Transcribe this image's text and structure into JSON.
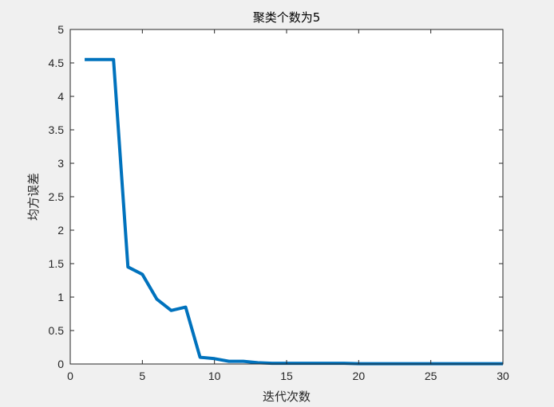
{
  "chart_data": {
    "type": "line",
    "title": "聚类个数为5",
    "xlabel": "迭代次数",
    "ylabel": "均方误差",
    "xlim": [
      0,
      30
    ],
    "ylim": [
      0,
      5
    ],
    "xticks": [
      0,
      5,
      10,
      15,
      20,
      25,
      30
    ],
    "yticks": [
      0,
      0.5,
      1,
      1.5,
      2,
      2.5,
      3,
      3.5,
      4,
      4.5,
      5
    ],
    "grid": false,
    "series": [
      {
        "color": "#0072BD",
        "x": [
          1,
          2,
          3,
          4,
          5,
          6,
          7,
          8,
          9,
          10,
          11,
          12,
          13,
          14,
          15,
          16,
          17,
          18,
          19,
          20,
          21,
          22,
          23,
          24,
          25,
          26,
          27,
          28,
          29,
          30
        ],
        "y": [
          4.55,
          4.55,
          4.55,
          1.45,
          1.34,
          0.97,
          0.8,
          0.85,
          0.1,
          0.08,
          0.04,
          0.04,
          0.02,
          0.01,
          0.01,
          0.01,
          0.01,
          0.01,
          0.01,
          0.005,
          0.005,
          0.005,
          0.005,
          0.005,
          0.005,
          0.005,
          0.005,
          0.005,
          0.005,
          0.005
        ]
      }
    ]
  }
}
